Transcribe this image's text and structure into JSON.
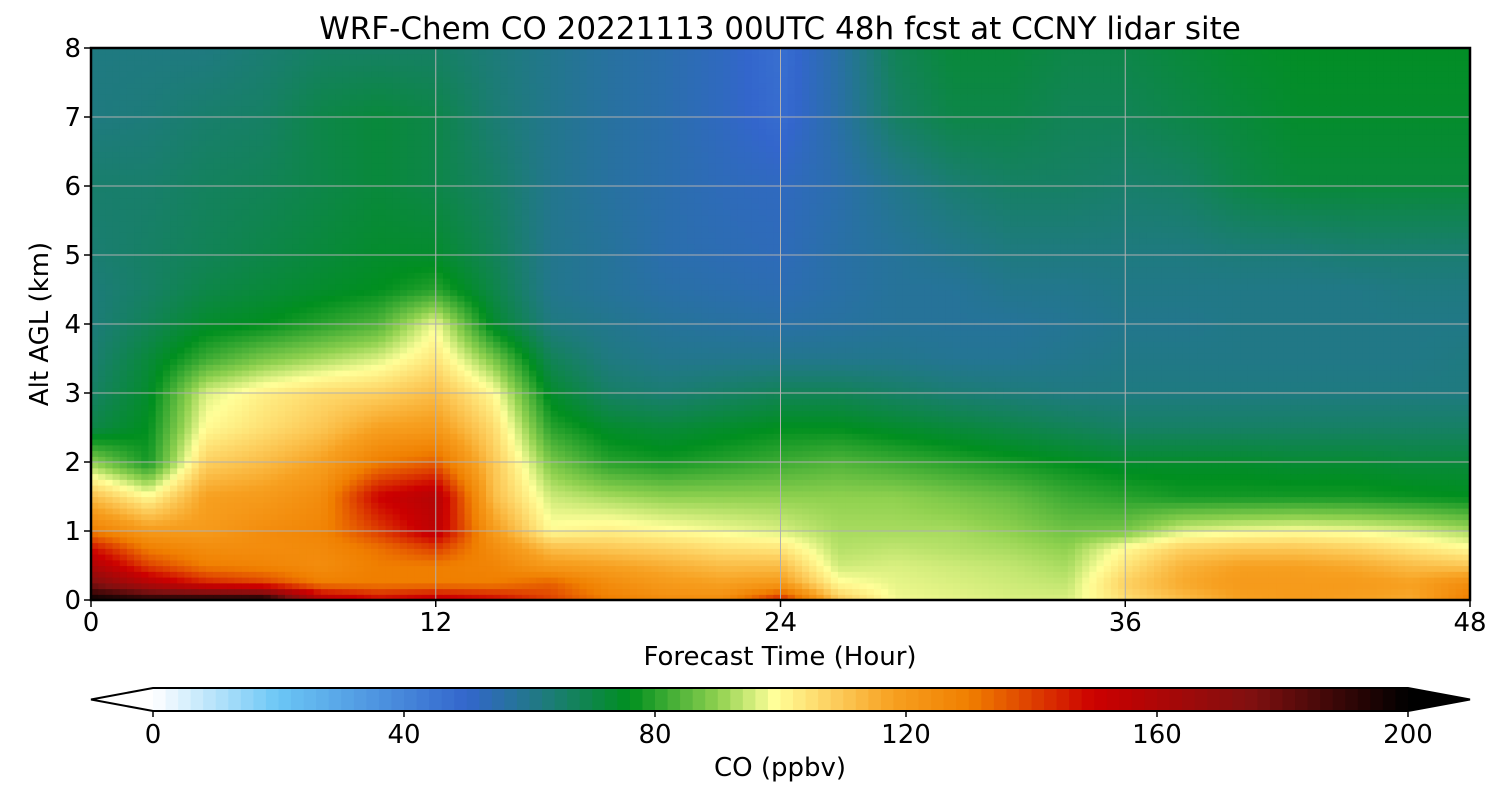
{
  "chart_data": {
    "type": "heatmap",
    "title": "WRF-Chem CO  20221113 00UTC 48h fcst at CCNY lidar site",
    "xlabel": "Forecast Time (Hour)",
    "ylabel": "Alt AGL (km)",
    "xlim": [
      0,
      48
    ],
    "ylim": [
      0,
      8
    ],
    "x_ticks": [
      "0",
      "12",
      "24",
      "36",
      "48"
    ],
    "y_ticks": [
      "0",
      "1",
      "2",
      "3",
      "4",
      "5",
      "6",
      "7",
      "8"
    ],
    "grid": true,
    "colorbar": {
      "label": "CO  (ppbv)",
      "range": [
        0,
        200
      ],
      "extend": "both",
      "ticks": [
        "0",
        "40",
        "80",
        "120",
        "160",
        "200"
      ],
      "stops": [
        {
          "v": 0,
          "c": "#ffffff"
        },
        {
          "v": 20,
          "c": "#6bc6f5"
        },
        {
          "v": 50,
          "c": "#3366cc"
        },
        {
          "v": 62,
          "c": "#1f7a80"
        },
        {
          "v": 76,
          "c": "#008f1f"
        },
        {
          "v": 90,
          "c": "#8fd14f"
        },
        {
          "v": 99,
          "c": "#ffff99"
        },
        {
          "v": 108,
          "c": "#fdd060"
        },
        {
          "v": 118,
          "c": "#f7a020"
        },
        {
          "v": 130,
          "c": "#f07f00"
        },
        {
          "v": 150,
          "c": "#cc0000"
        },
        {
          "v": 175,
          "c": "#801010"
        },
        {
          "v": 200,
          "c": "#000000"
        }
      ]
    },
    "grid_x": [
      0,
      2,
      4,
      6,
      8,
      10,
      12,
      14,
      16,
      18,
      20,
      22,
      24,
      26,
      28,
      30,
      32,
      34,
      36,
      38,
      40,
      42,
      44,
      46,
      48
    ],
    "grid_y": [
      0,
      0.25,
      0.5,
      0.75,
      1,
      1.5,
      2,
      2.5,
      3,
      3.5,
      4,
      4.5,
      5,
      6,
      7,
      8
    ],
    "values": [
      [
        200,
        195,
        198,
        200,
        160,
        150,
        155,
        150,
        140,
        130,
        125,
        125,
        145,
        110,
        98,
        97,
        96,
        96,
        105,
        112,
        118,
        120,
        118,
        116,
        130
      ],
      [
        175,
        158,
        145,
        140,
        130,
        130,
        130,
        130,
        135,
        125,
        120,
        118,
        120,
        100,
        97,
        96,
        95,
        94,
        108,
        116,
        120,
        120,
        120,
        118,
        125
      ],
      [
        160,
        140,
        130,
        128,
        125,
        130,
        130,
        128,
        120,
        118,
        115,
        112,
        112,
        95,
        96,
        95,
        94,
        92,
        104,
        114,
        118,
        118,
        116,
        112,
        110
      ],
      [
        148,
        130,
        125,
        125,
        126,
        132,
        140,
        125,
        112,
        110,
        108,
        105,
        104,
        93,
        94,
        93,
        92,
        90,
        100,
        108,
        110,
        110,
        108,
        104,
        100
      ],
      [
        130,
        120,
        120,
        125,
        128,
        140,
        155,
        120,
        100,
        102,
        100,
        98,
        96,
        92,
        92,
        92,
        90,
        87,
        88,
        96,
        98,
        99,
        98,
        96,
        92
      ],
      [
        112,
        100,
        118,
        120,
        125,
        150,
        158,
        112,
        95,
        92,
        90,
        90,
        90,
        90,
        90,
        88,
        86,
        82,
        80,
        78,
        78,
        78,
        78,
        77,
        76
      ],
      [
        90,
        78,
        108,
        112,
        118,
        130,
        135,
        110,
        88,
        80,
        78,
        80,
        82,
        84,
        82,
        80,
        78,
        76,
        74,
        74,
        74,
        73,
        73,
        72,
        72
      ],
      [
        70,
        76,
        100,
        105,
        110,
        118,
        120,
        106,
        80,
        74,
        72,
        74,
        76,
        76,
        74,
        72,
        70,
        68,
        66,
        66,
        66,
        66,
        66,
        66,
        66
      ],
      [
        66,
        74,
        96,
        102,
        106,
        108,
        112,
        100,
        74,
        66,
        64,
        66,
        68,
        68,
        66,
        64,
        63,
        62,
        62,
        62,
        62,
        62,
        62,
        62,
        62
      ],
      [
        64,
        72,
        82,
        88,
        92,
        96,
        104,
        88,
        68,
        62,
        60,
        60,
        60,
        60,
        60,
        59,
        59,
        60,
        61,
        61,
        61,
        61,
        61,
        61,
        62
      ],
      [
        63,
        68,
        74,
        76,
        80,
        84,
        98,
        74,
        62,
        60,
        58,
        57,
        56,
        57,
        58,
        58,
        58,
        59,
        60,
        60,
        61,
        61,
        61,
        61,
        61
      ],
      [
        63,
        66,
        70,
        72,
        74,
        76,
        80,
        70,
        60,
        58,
        56,
        55,
        54,
        56,
        58,
        58,
        60,
        60,
        61,
        61,
        61,
        61,
        61,
        62,
        62
      ],
      [
        64,
        66,
        68,
        70,
        72,
        74,
        74,
        68,
        60,
        58,
        55,
        54,
        53,
        56,
        58,
        60,
        62,
        62,
        62,
        62,
        63,
        63,
        64,
        64,
        64
      ],
      [
        65,
        65,
        67,
        68,
        70,
        72,
        70,
        66,
        60,
        57,
        55,
        53,
        52,
        55,
        60,
        64,
        66,
        66,
        65,
        66,
        70,
        72,
        72,
        72,
        72
      ],
      [
        62,
        63,
        65,
        66,
        70,
        72,
        70,
        64,
        60,
        57,
        55,
        52,
        48,
        56,
        66,
        70,
        70,
        68,
        68,
        70,
        72,
        74,
        74,
        74,
        74
      ],
      [
        62,
        62,
        62,
        64,
        66,
        66,
        66,
        63,
        60,
        57,
        55,
        52,
        47,
        56,
        68,
        72,
        72,
        70,
        70,
        72,
        74,
        75,
        75,
        75,
        75
      ]
    ]
  }
}
